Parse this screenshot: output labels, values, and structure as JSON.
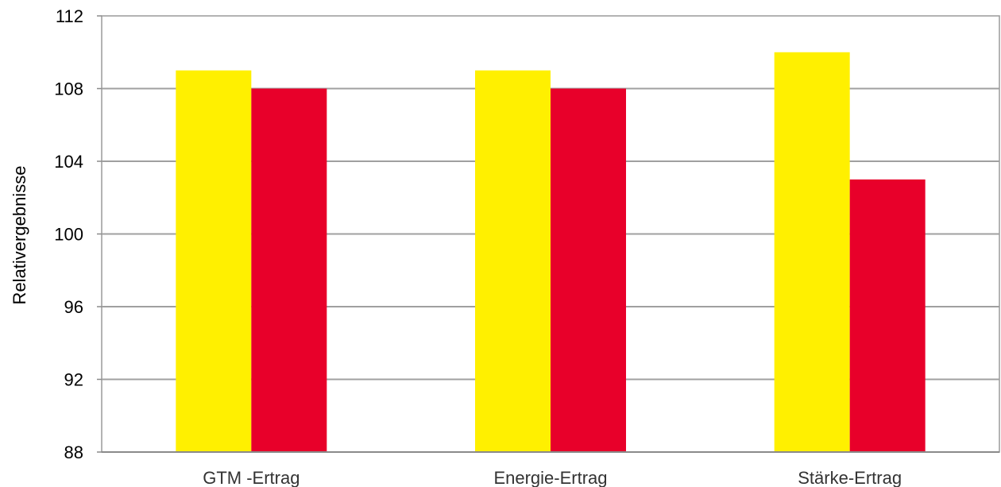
{
  "chart_data": {
    "type": "bar",
    "title": "",
    "xlabel": "",
    "ylabel": "Relativergebnisse",
    "ylim": [
      88,
      112
    ],
    "yticks": [
      88,
      92,
      96,
      100,
      104,
      108,
      112
    ],
    "grid": true,
    "legend": "none",
    "categories": [
      "GTM -Ertrag",
      "Energie-Ertrag",
      "Stärke-Ertrag"
    ],
    "series": [
      {
        "color": "#FFF000",
        "values": [
          109,
          109,
          110
        ]
      },
      {
        "color": "#E8002A",
        "values": [
          108,
          108,
          103
        ]
      }
    ]
  }
}
